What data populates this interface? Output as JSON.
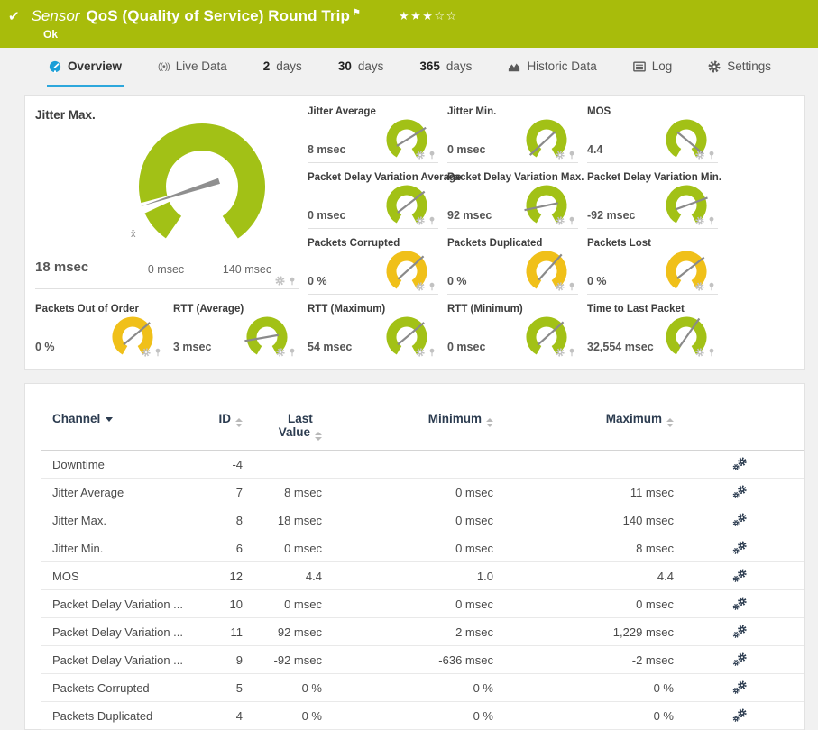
{
  "colors": {
    "header_bg": "#a8bc0b",
    "accent_blue": "#2da7dc",
    "gauge_green": "#a2c116",
    "gauge_yellow": "#f0c019",
    "table_header": "#2c3c50"
  },
  "header": {
    "status_icon": "✔",
    "kind_label": "Sensor",
    "title": "QoS (Quality of Service) Round Trip",
    "flag_icon": "⚑",
    "stars": "★★★☆☆",
    "status_text": "Ok"
  },
  "tabs": [
    {
      "label": "Overview",
      "icon": "overview",
      "active": true
    },
    {
      "label": "Live Data",
      "icon": "live"
    },
    {
      "num": "2",
      "label": "days"
    },
    {
      "num": "30",
      "label": "days"
    },
    {
      "num": "365",
      "label": "days"
    },
    {
      "label": "Historic Data",
      "icon": "chart"
    },
    {
      "label": "Log",
      "icon": "log"
    },
    {
      "label": "Settings",
      "icon": "gear"
    }
  ],
  "big_gauge": {
    "label": "Jitter Max.",
    "value": "18 msec",
    "scale_min": "0 msec",
    "scale_max": "140 msec",
    "avg_marker": "x̄",
    "needle_deg": 162,
    "color": "green"
  },
  "gauge_rows": [
    [
      {
        "label": "Jitter Average",
        "value": "8 msec",
        "color": "green",
        "needle_deg": -32
      },
      {
        "label": "Jitter Min.",
        "value": "0 msec",
        "color": "green",
        "needle_deg": 137
      },
      {
        "label": "MOS",
        "value": "4.4",
        "color": "green",
        "needle_deg": 40
      }
    ],
    [
      {
        "label": "Packet Delay Variation Average",
        "value": "0 msec",
        "color": "green",
        "needle_deg": -38
      },
      {
        "label": "Packet Delay Variation Max.",
        "value": "92 msec",
        "color": "green",
        "needle_deg": 168
      },
      {
        "label": "Packet Delay Variation Min.",
        "value": "-92 msec",
        "color": "green",
        "needle_deg": -20
      }
    ],
    [
      {
        "label": "Packets Corrupted",
        "value": "0 %",
        "color": "yellow",
        "needle_deg": -42
      },
      {
        "label": "Packets Duplicated",
        "value": "0 %",
        "color": "yellow",
        "needle_deg": -48
      },
      {
        "label": "Packets Lost",
        "value": "0 %",
        "color": "yellow",
        "needle_deg": -38
      }
    ]
  ],
  "gauge_bottom": [
    {
      "label": "Packets Out of Order",
      "value": "0 %",
      "color": "yellow",
      "needle_deg": -40
    },
    {
      "label": "RTT (Average)",
      "value": "3 msec",
      "color": "green",
      "needle_deg": 170
    },
    {
      "label": "RTT (Maximum)",
      "value": "54 msec",
      "color": "green",
      "needle_deg": -40
    },
    {
      "label": "RTT (Minimum)",
      "value": "0 msec",
      "color": "green",
      "needle_deg": -42
    },
    {
      "label": "Time to Last Packet",
      "value": "32,554 msec",
      "color": "green",
      "needle_deg": -55
    }
  ],
  "table": {
    "headers": {
      "channel": "Channel",
      "id": "ID",
      "last_value_line1": "Last",
      "last_value_line2": "Value",
      "minimum": "Minimum",
      "maximum": "Maximum"
    },
    "rows": [
      {
        "channel": "Downtime",
        "id": "-4",
        "last": "",
        "min": "",
        "max": ""
      },
      {
        "channel": "Jitter Average",
        "id": "7",
        "last": "8 msec",
        "min": "0 msec",
        "max": "11 msec"
      },
      {
        "channel": "Jitter Max.",
        "id": "8",
        "last": "18 msec",
        "min": "0 msec",
        "max": "140 msec"
      },
      {
        "channel": "Jitter Min.",
        "id": "6",
        "last": "0 msec",
        "min": "0 msec",
        "max": "8 msec"
      },
      {
        "channel": "MOS",
        "id": "12",
        "last": "4.4",
        "min": "1.0",
        "max": "4.4"
      },
      {
        "channel": "Packet Delay Variation ...",
        "id": "10",
        "last": "0 msec",
        "min": "0 msec",
        "max": "0 msec"
      },
      {
        "channel": "Packet Delay Variation ...",
        "id": "11",
        "last": "92 msec",
        "min": "2 msec",
        "max": "1,229 msec"
      },
      {
        "channel": "Packet Delay Variation ...",
        "id": "9",
        "last": "-92 msec",
        "min": "-636 msec",
        "max": "-2 msec"
      },
      {
        "channel": "Packets Corrupted",
        "id": "5",
        "last": "0 %",
        "min": "0 %",
        "max": "0 %"
      },
      {
        "channel": "Packets Duplicated",
        "id": "4",
        "last": "0 %",
        "min": "0 %",
        "max": "0 %"
      }
    ]
  }
}
